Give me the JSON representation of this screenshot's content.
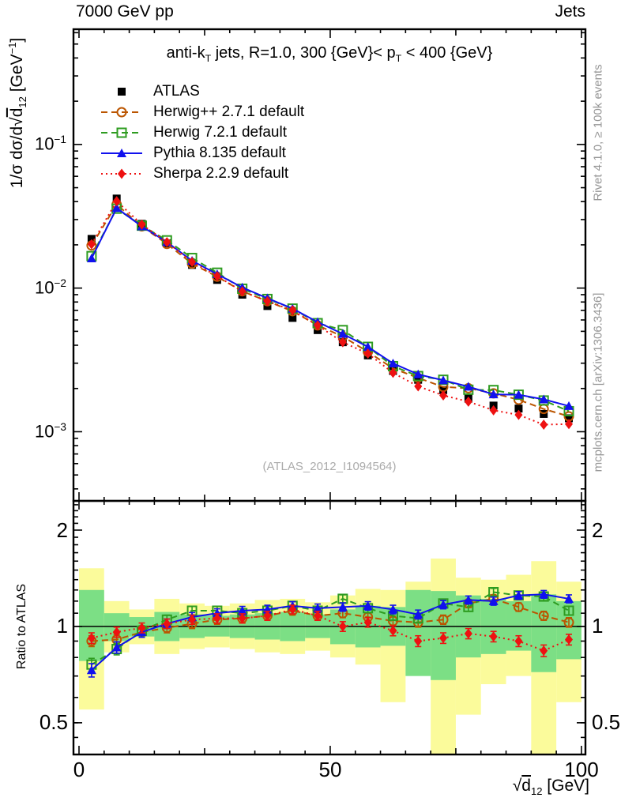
{
  "header": {
    "left": "7000 GeV pp",
    "right": "Jets"
  },
  "labels": {
    "title": {
      "p1": "anti-k",
      "sub1": "T",
      "p2": " jets, R=1.0, 300 {GeV}< p",
      "sub2": "T",
      "p3": " < 400 {GeV}"
    },
    "ylabel_main": {
      "p1": "1/σ dσ/d√",
      "rad": "d",
      "sub": "12",
      "p2": " [GeV",
      "sup": "−1",
      "p3": "]"
    },
    "ylabel_ratio": "Ratio to ATLAS",
    "xlabel": {
      "p1": "√",
      "rad": "d",
      "sub": "12",
      "p2": " [GeV]"
    },
    "watermark": "(ATLAS_2012_I1094564)",
    "side_top": "Rivet 4.1.0, ≥ 100k events",
    "side_bottom": "mcplots.cern.ch [arXiv:1306.3436]"
  },
  "chart_data": {
    "type": "line",
    "title": "anti-kT jets, R=1.0, 300 GeV < pT < 400 GeV",
    "xlabel": "sqrt(d12) [GeV]",
    "ylabel": "1/sigma dsigma/d sqrt(d12) [GeV^-1]",
    "x": [
      2.5,
      7.5,
      12.5,
      17.5,
      22.5,
      27.5,
      32.5,
      37.5,
      42.5,
      47.5,
      52.5,
      57.5,
      62.5,
      67.5,
      72.5,
      77.5,
      82.5,
      87.5,
      92.5,
      97.5
    ],
    "bin_width": 5,
    "xlim": [
      -1.1,
      100.8
    ],
    "xticks": [
      0,
      50,
      100
    ],
    "xtick_labels": [
      "0",
      "50",
      "100"
    ],
    "xtick_medium": [
      25,
      75
    ],
    "xtick_minor_step": 5,
    "main_panel": {
      "yscale": "log10",
      "ylim": [
        0.00033,
        0.634
      ],
      "yticks": [
        0.1,
        0.01,
        0.001
      ],
      "ytick_labels": [
        {
          "base": "10",
          "exp": "−1"
        },
        {
          "base": "10",
          "exp": "−2"
        },
        {
          "base": "10",
          "exp": "−3"
        }
      ]
    },
    "ratio_panel": {
      "yscale": "log2",
      "ylim": [
        0.398,
        2.468
      ],
      "label": "Ratio to ATLAS",
      "yticks": [
        0.5,
        1,
        2
      ],
      "ytick_labels": [
        "2",
        "1",
        "0.5"
      ],
      "err": 0.035,
      "bands": {
        "yellow_color": "#fbfb9b",
        "green_color": "#7cdf85",
        "yellow": [
          [
            0.55,
            1.52
          ],
          [
            0.83,
            1.2
          ],
          [
            0.88,
            1.13
          ],
          [
            0.82,
            1.22
          ],
          [
            0.85,
            1.18
          ],
          [
            0.86,
            1.16
          ],
          [
            0.85,
            1.18
          ],
          [
            0.83,
            1.21
          ],
          [
            0.82,
            1.22
          ],
          [
            0.84,
            1.19
          ],
          [
            0.8,
            1.25
          ],
          [
            0.76,
            1.31
          ],
          [
            0.58,
            1.3
          ],
          [
            0.72,
            1.38
          ],
          [
            0.4,
            1.63
          ],
          [
            0.53,
            1.42
          ],
          [
            0.66,
            1.4
          ],
          [
            0.7,
            1.45
          ],
          [
            0.4,
            1.6
          ],
          [
            0.58,
            1.38
          ]
        ],
        "green": [
          [
            0.78,
            1.3
          ],
          [
            0.9,
            1.1
          ],
          [
            0.93,
            1.07
          ],
          [
            0.9,
            1.11
          ],
          [
            0.92,
            1.09
          ],
          [
            0.93,
            1.08
          ],
          [
            0.92,
            1.09
          ],
          [
            0.91,
            1.1
          ],
          [
            0.9,
            1.11
          ],
          [
            0.92,
            1.09
          ],
          [
            0.88,
            1.13
          ],
          [
            0.86,
            1.16
          ],
          [
            0.87,
            1.15
          ],
          [
            0.7,
            1.3
          ],
          [
            0.68,
            1.29
          ],
          [
            0.8,
            1.25
          ],
          [
            0.82,
            1.22
          ],
          [
            0.84,
            1.2
          ],
          [
            0.72,
            1.26
          ],
          [
            0.79,
            1.2
          ]
        ]
      }
    },
    "series": [
      {
        "name": "ATLAS",
        "color": "#000000",
        "marker": "square-filled",
        "line": "none",
        "values": [
          0.022,
          0.042,
          0.028,
          0.0205,
          0.0145,
          0.0114,
          0.009,
          0.0075,
          0.0062,
          0.0051,
          0.0042,
          0.0034,
          0.00265,
          0.0023,
          0.00195,
          0.0017,
          0.00152,
          0.00145,
          0.00133,
          0.00124
        ]
      },
      {
        "name": "Herwig++ 2.7.1 default",
        "color": "#bb5500",
        "marker": "circle-open",
        "line": "dash",
        "values": [
          0.0198,
          0.0382,
          0.0269,
          0.0203,
          0.0148,
          0.012,
          0.0095,
          0.0081,
          0.0069,
          0.0055,
          0.0046,
          0.0036,
          0.00276,
          0.00237,
          0.00205,
          0.00201,
          0.00185,
          0.00167,
          0.00144,
          0.00128
        ],
        "ratio": [
          0.9,
          0.91,
          0.96,
          0.99,
          1.02,
          1.05,
          1.06,
          1.08,
          1.12,
          1.08,
          1.1,
          1.07,
          1.04,
          1.03,
          1.05,
          1.18,
          1.22,
          1.15,
          1.08,
          1.03
        ]
      },
      {
        "name": "Herwig 7.2.1 default",
        "color": "#2e9c20",
        "marker": "square-open",
        "line": "dash",
        "values": [
          0.0167,
          0.0357,
          0.0272,
          0.0215,
          0.0162,
          0.0128,
          0.0099,
          0.0084,
          0.0072,
          0.0057,
          0.0051,
          0.0039,
          0.00286,
          0.00244,
          0.0023,
          0.00196,
          0.00195,
          0.00181,
          0.00165,
          0.00139
        ],
        "ratio": [
          0.76,
          0.85,
          0.97,
          1.05,
          1.12,
          1.12,
          1.1,
          1.12,
          1.16,
          1.12,
          1.22,
          1.14,
          1.08,
          1.06,
          1.18,
          1.15,
          1.28,
          1.25,
          1.24,
          1.12
        ]
      },
      {
        "name": "Pythia 8.135 default",
        "color": "#1111ee",
        "marker": "triangle-filled",
        "line": "solid",
        "values": [
          0.0161,
          0.0361,
          0.0269,
          0.0209,
          0.0155,
          0.0125,
          0.0101,
          0.0085,
          0.0072,
          0.0058,
          0.0048,
          0.0039,
          0.00299,
          0.00251,
          0.00228,
          0.00206,
          0.00182,
          0.00181,
          0.00168,
          0.00151
        ],
        "ratio": [
          0.73,
          0.86,
          0.96,
          1.02,
          1.07,
          1.1,
          1.12,
          1.13,
          1.16,
          1.14,
          1.15,
          1.16,
          1.13,
          1.09,
          1.17,
          1.21,
          1.2,
          1.25,
          1.26,
          1.22
        ]
      },
      {
        "name": "Sherpa 2.2.9 default",
        "color": "#ee1111",
        "marker": "diamond-filled",
        "line": "dot",
        "values": [
          0.0202,
          0.0403,
          0.0277,
          0.0209,
          0.0152,
          0.0121,
          0.0095,
          0.0081,
          0.007,
          0.0055,
          0.0042,
          0.0035,
          0.00257,
          0.00207,
          0.00179,
          0.00162,
          0.00141,
          0.00131,
          0.00112,
          0.00113
        ],
        "ratio": [
          0.92,
          0.96,
          0.99,
          1.02,
          1.05,
          1.06,
          1.06,
          1.08,
          1.13,
          1.08,
          1.0,
          1.03,
          0.97,
          0.9,
          0.92,
          0.95,
          0.93,
          0.9,
          0.84,
          0.91
        ]
      }
    ]
  }
}
